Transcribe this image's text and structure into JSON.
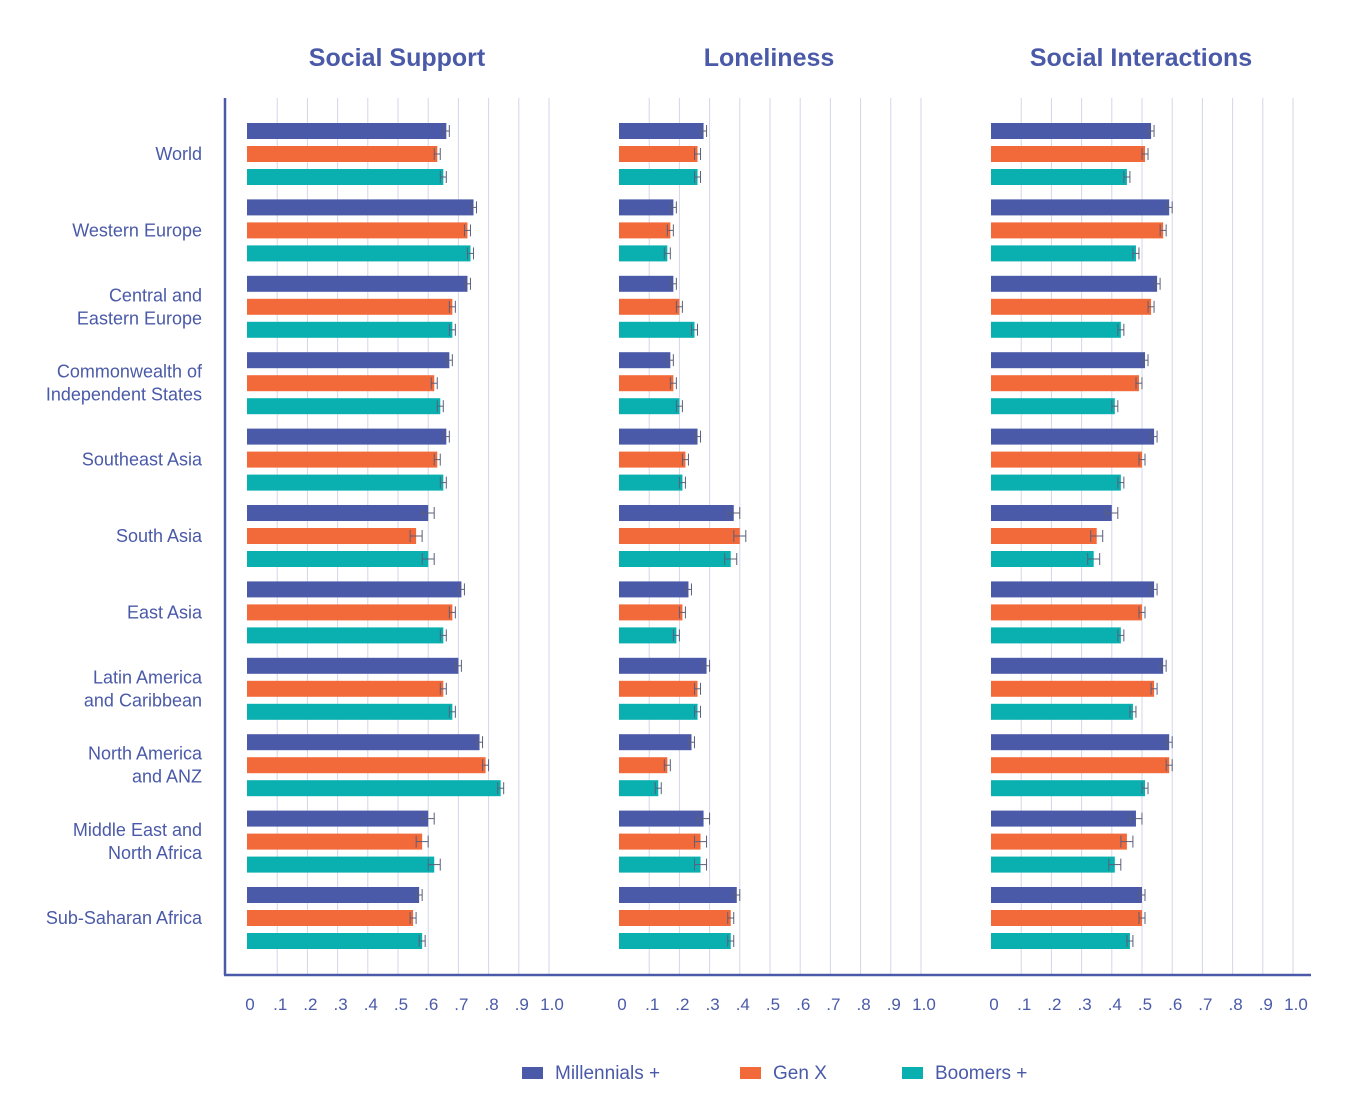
{
  "chart_data": {
    "type": "bar",
    "orientation": "horizontal",
    "panels": [
      {
        "title": "Social Support",
        "series": [
          {
            "name": "Millennials +",
            "values": [
              0.66,
              0.75,
              0.73,
              0.67,
              0.66,
              0.6,
              0.71,
              0.7,
              0.77,
              0.6,
              0.57
            ]
          },
          {
            "name": "Gen X",
            "values": [
              0.63,
              0.73,
              0.68,
              0.62,
              0.63,
              0.56,
              0.68,
              0.65,
              0.79,
              0.58,
              0.55
            ]
          },
          {
            "name": "Boomers +",
            "values": [
              0.65,
              0.74,
              0.68,
              0.64,
              0.65,
              0.6,
              0.65,
              0.68,
              0.84,
              0.62,
              0.58
            ]
          }
        ]
      },
      {
        "title": "Loneliness",
        "series": [
          {
            "name": "Millennials +",
            "values": [
              0.28,
              0.18,
              0.18,
              0.17,
              0.26,
              0.38,
              0.23,
              0.29,
              0.24,
              0.28,
              0.39
            ]
          },
          {
            "name": "Gen X",
            "values": [
              0.26,
              0.17,
              0.2,
              0.18,
              0.22,
              0.4,
              0.21,
              0.26,
              0.16,
              0.27,
              0.37
            ]
          },
          {
            "name": "Boomers +",
            "values": [
              0.26,
              0.16,
              0.25,
              0.2,
              0.21,
              0.37,
              0.19,
              0.26,
              0.13,
              0.27,
              0.37
            ]
          }
        ]
      },
      {
        "title": "Social Interactions",
        "series": [
          {
            "name": "Millennials +",
            "values": [
              0.53,
              0.59,
              0.55,
              0.51,
              0.54,
              0.4,
              0.54,
              0.57,
              0.59,
              0.48,
              0.5
            ]
          },
          {
            "name": "Gen X",
            "values": [
              0.51,
              0.57,
              0.53,
              0.49,
              0.5,
              0.35,
              0.5,
              0.54,
              0.59,
              0.45,
              0.5
            ]
          },
          {
            "name": "Boomers +",
            "values": [
              0.45,
              0.48,
              0.43,
              0.41,
              0.43,
              0.34,
              0.43,
              0.47,
              0.51,
              0.41,
              0.46
            ]
          }
        ]
      }
    ],
    "categories": [
      [
        "World"
      ],
      [
        "Western Europe"
      ],
      [
        "Central and",
        "Eastern Europe"
      ],
      [
        "Commonwealth of",
        "Independent States"
      ],
      [
        "Southeast Asia"
      ],
      [
        "South Asia"
      ],
      [
        "East Asia"
      ],
      [
        "Latin America",
        "and Caribbean"
      ],
      [
        "North America",
        "and ANZ"
      ],
      [
        "Middle East and",
        "North Africa"
      ],
      [
        "Sub-Saharan Africa"
      ]
    ],
    "x_tick_labels": [
      "0",
      ".1",
      ".2",
      ".3",
      ".4",
      ".5",
      ".6",
      ".7",
      ".8",
      ".9",
      "1.0"
    ],
    "xlim": [
      0,
      1
    ],
    "grid": true,
    "legend_position": "bottom",
    "legend": [
      "Millennials +",
      "Gen X",
      "Boomers +"
    ],
    "colors": {
      "Millennials +": "#4a5aa8",
      "Gen X": "#f26a3a",
      "Boomers +": "#0aafaf",
      "text": "#4a5aa8",
      "grid": "#d4d6ea"
    }
  }
}
